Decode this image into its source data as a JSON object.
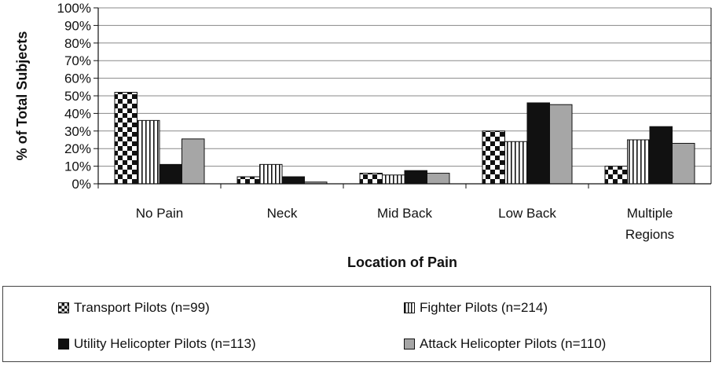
{
  "chart_data": {
    "type": "bar",
    "title": "",
    "xlabel": "Location of Pain",
    "ylabel": "% of Total Subjects",
    "ylim": [
      0,
      100
    ],
    "yticks": [
      "0%",
      "10%",
      "20%",
      "30%",
      "40%",
      "50%",
      "60%",
      "70%",
      "80%",
      "90%",
      "100%"
    ],
    "categories": [
      [
        "No Pain"
      ],
      [
        "Neck"
      ],
      [
        "Mid Back"
      ],
      [
        "Low Back"
      ],
      [
        "Multiple",
        "Regions"
      ]
    ],
    "grid": true,
    "legend_position": "bottom",
    "series": [
      {
        "name": "Transport Pilots (n=99)",
        "pattern": "checker",
        "values": [
          52,
          4,
          6,
          30,
          10
        ]
      },
      {
        "name": "Fighter Pilots (n=214)",
        "pattern": "vertical-stripes",
        "values": [
          36,
          11,
          5,
          24,
          25
        ]
      },
      {
        "name": "Utility Helicopter Pilots (n=113)",
        "pattern": "solid-black",
        "values": [
          11,
          4,
          7.5,
          46,
          32.5
        ]
      },
      {
        "name": "Attack Helicopter Pilots (n=110)",
        "pattern": "solid-gray",
        "values": [
          25.5,
          1,
          6,
          45,
          23
        ]
      }
    ],
    "colors": {
      "black": "#111111",
      "gray": "#a6a6a6",
      "grid": "#888888"
    }
  }
}
